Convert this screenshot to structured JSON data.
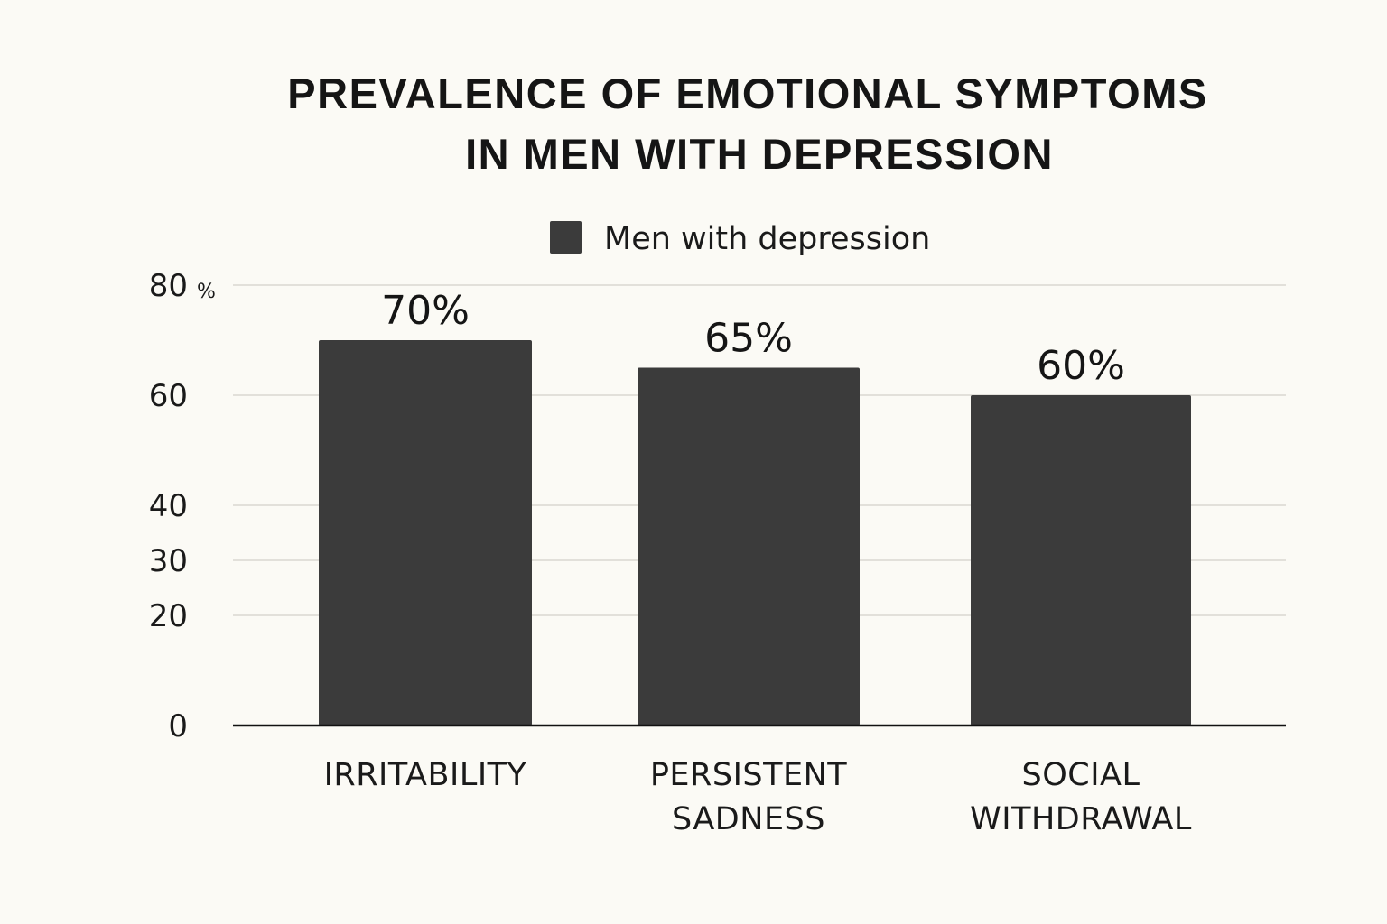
{
  "chart_data": {
    "type": "bar",
    "title_lines": [
      "PREVALENCE OF EMOTIONAL SYMPTOMS",
      "IN MEN WITH DEPRESSION"
    ],
    "legend": [
      {
        "name": "Men with depression",
        "color": "#3b3b3b"
      }
    ],
    "categories": [
      {
        "lines": [
          "IRRITABILITY"
        ]
      },
      {
        "lines": [
          "PERSISTENT",
          "SADNESS"
        ]
      },
      {
        "lines": [
          "SOCIAL",
          "WITHDRAWAL"
        ]
      }
    ],
    "series": [
      {
        "name": "Men with depression",
        "values": [
          70,
          65,
          60
        ],
        "labels": [
          "70%",
          "65%",
          "60%"
        ],
        "color": "#3b3b3b"
      }
    ],
    "y_ticks": [
      {
        "value": 0,
        "label": "0"
      },
      {
        "value": 20,
        "label": "20"
      },
      {
        "value": 30,
        "label": "30"
      },
      {
        "value": 40,
        "label": "40"
      },
      {
        "value": 60,
        "label": "60"
      },
      {
        "value": 80,
        "label": "80"
      }
    ],
    "y_unit_label": "%",
    "grid": true,
    "legend_position": "top-center",
    "colors": {
      "bar": "#3b3b3b",
      "background": "#fbfaf5",
      "grid": "#d9d8d2"
    }
  }
}
